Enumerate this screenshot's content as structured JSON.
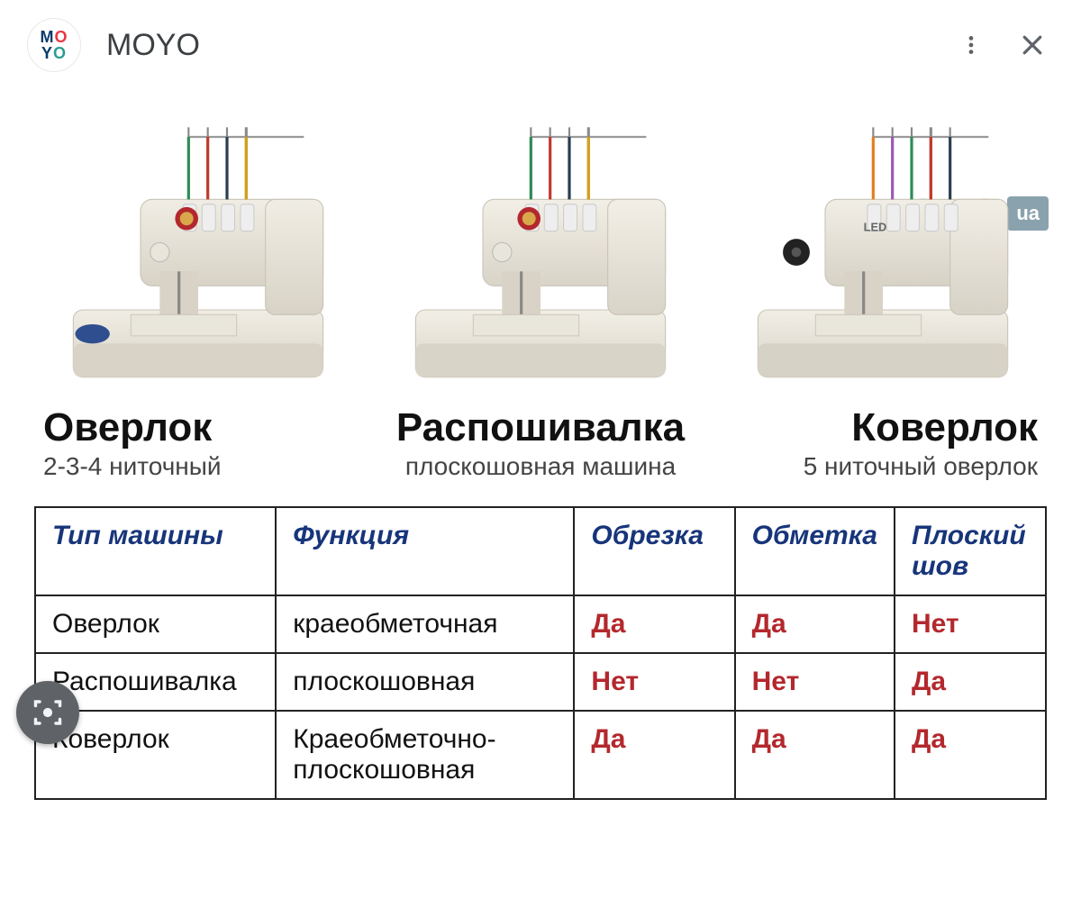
{
  "header": {
    "logo": {
      "line1a": "M",
      "line1b": "O",
      "line2a": "Y",
      "line2b": "O"
    },
    "title": "MOYO"
  },
  "watermark": {
    "text": "MOYO",
    "badge": "ua",
    "colors": [
      "#6fb6e0",
      "#6fb6e0",
      "#6fb6e0",
      "#e67e22"
    ]
  },
  "products": [
    {
      "title": "Оверлок",
      "subtitle": "2-3-4 ниточный",
      "machine": {
        "body": "#f0ede4",
        "shad": "#d8d3c6",
        "thread_colors": [
          "#2e8b57",
          "#c0392b",
          "#2c3e50",
          "#d4a017"
        ],
        "seal": "#b3282d",
        "knob": "#2e4e8f"
      }
    },
    {
      "title": "Распошивалка",
      "subtitle": "плоскошовная машина",
      "machine": {
        "body": "#f2efe6",
        "shad": "#d9d4c8",
        "thread_colors": [
          "#2e8b57",
          "#c0392b",
          "#2c3e50",
          "#d4a017"
        ],
        "seal": "#b3282d"
      }
    },
    {
      "title": "Коверлок",
      "subtitle": "5 ниточный оверлок",
      "machine": {
        "body": "#f1eee6",
        "shad": "#d7d2c6",
        "thread_colors": [
          "#e67e22",
          "#9b59b6",
          "#2e8b57",
          "#c0392b",
          "#2c3e50"
        ],
        "led": "LED"
      }
    }
  ],
  "table": {
    "header_color": "#17357a",
    "value_color": "#b3282d",
    "text_color": "#111111",
    "border_color": "#222222",
    "col_widths": [
      "24%",
      "30%",
      "16%",
      "15%",
      "15%"
    ],
    "columns": [
      "Тип машины",
      "Функция",
      "Обрезка",
      "Обметка",
      "Плоский шов"
    ],
    "rows": [
      [
        "Оверлок",
        "краеобметочная",
        "Да",
        "Да",
        "Нет"
      ],
      [
        "Распошивалка",
        "плоскошовная",
        "Нет",
        "Нет",
        "Да"
      ],
      [
        "Коверлок",
        "Краеобметочно-плоскошовная",
        "Да",
        "Да",
        "Да"
      ]
    ]
  }
}
